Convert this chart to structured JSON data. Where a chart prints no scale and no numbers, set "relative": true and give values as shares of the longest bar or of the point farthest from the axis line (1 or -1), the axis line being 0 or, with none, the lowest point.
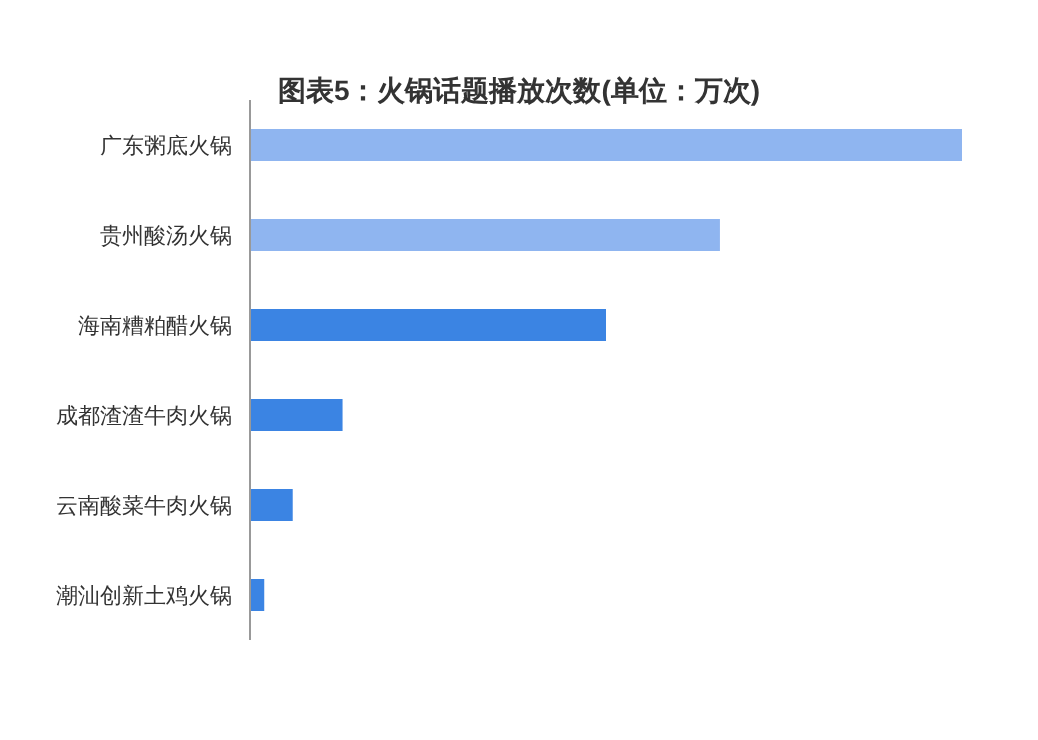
{
  "chart_data": {
    "type": "bar",
    "orientation": "horizontal",
    "relative": true,
    "title": "图表5：火锅话题播放次数(单位：万次)",
    "categories": [
      "广东粥底火锅",
      "贵州酸汤火锅",
      "海南糟粕醋火锅",
      "成都渣渣牛肉火锅",
      "云南酸菜牛肉火锅",
      "潮汕创新土鸡火锅"
    ],
    "values": [
      1,
      0.66,
      0.5,
      0.13,
      0.06,
      0.02
    ],
    "colors": [
      "#8fb5f0",
      "#8fb5f0",
      "#3b84e3",
      "#3b84e3",
      "#3b84e3",
      "#3b84e3"
    ]
  }
}
